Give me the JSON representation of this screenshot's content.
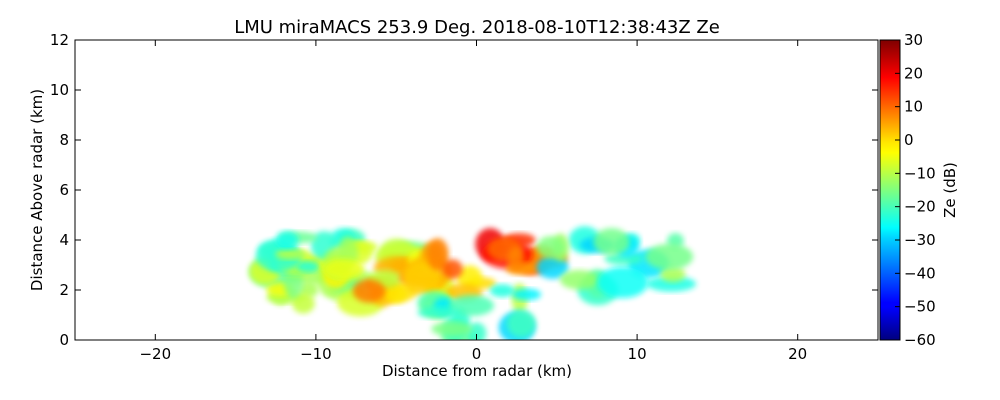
{
  "chart_data": {
    "type": "heatmap",
    "title": "LMU miraMACS 253.9 Deg. 2018-08-10T12:38:43Z  Ze",
    "xlabel": "Distance from radar (km)",
    "ylabel": "Distance Above radar  (km)",
    "xlim": [
      -25,
      25
    ],
    "ylim": [
      0,
      12
    ],
    "x_ticks": [
      -20,
      -10,
      0,
      10,
      20
    ],
    "x_tick_labels": [
      "−20",
      "−10",
      "0",
      "10",
      "20"
    ],
    "y_ticks": [
      0,
      2,
      4,
      6,
      8,
      10,
      12
    ],
    "y_tick_labels": [
      "0",
      "2",
      "4",
      "6",
      "8",
      "10",
      "12"
    ],
    "grid": false,
    "colorbar": {
      "label": "Ze (dB)",
      "range": [
        -60,
        30
      ],
      "ticks": [
        -60,
        -50,
        -40,
        -30,
        -20,
        -10,
        0,
        10,
        20,
        30
      ],
      "tick_labels": [
        "−60",
        "−50",
        "−40",
        "−30",
        "−20",
        "−10",
        "0",
        "10",
        "20",
        "30"
      ],
      "colormap": "jet"
    },
    "echo_extent": {
      "x_range_km": [
        -13.8,
        12.4
      ],
      "z_range_km": [
        0,
        4.3
      ],
      "ze_range_db": [
        -40,
        30
      ]
    },
    "echo_regions": [
      {
        "x": [
          -13.8,
          -7.0
        ],
        "z": [
          1.4,
          2.8
        ],
        "ze": -10
      },
      {
        "x": [
          -12.5,
          -4.0
        ],
        "z": [
          2.7,
          4.1
        ],
        "ze": -15
      },
      {
        "x": [
          -7.0,
          -2.0
        ],
        "z": [
          1.6,
          3.0
        ],
        "ze": 0
      },
      {
        "x": [
          -4.0,
          0.5
        ],
        "z": [
          1.8,
          4.2
        ],
        "ze": 5
      },
      {
        "x": [
          0.5,
          4.5
        ],
        "z": [
          2.2,
          4.1
        ],
        "ze": 15
      },
      {
        "x": [
          -3.0,
          3.5
        ],
        "z": [
          0.0,
          2.0
        ],
        "ze": -20
      },
      {
        "x": [
          4.5,
          12.4
        ],
        "z": [
          1.8,
          4.0
        ],
        "ze": -20
      }
    ]
  }
}
